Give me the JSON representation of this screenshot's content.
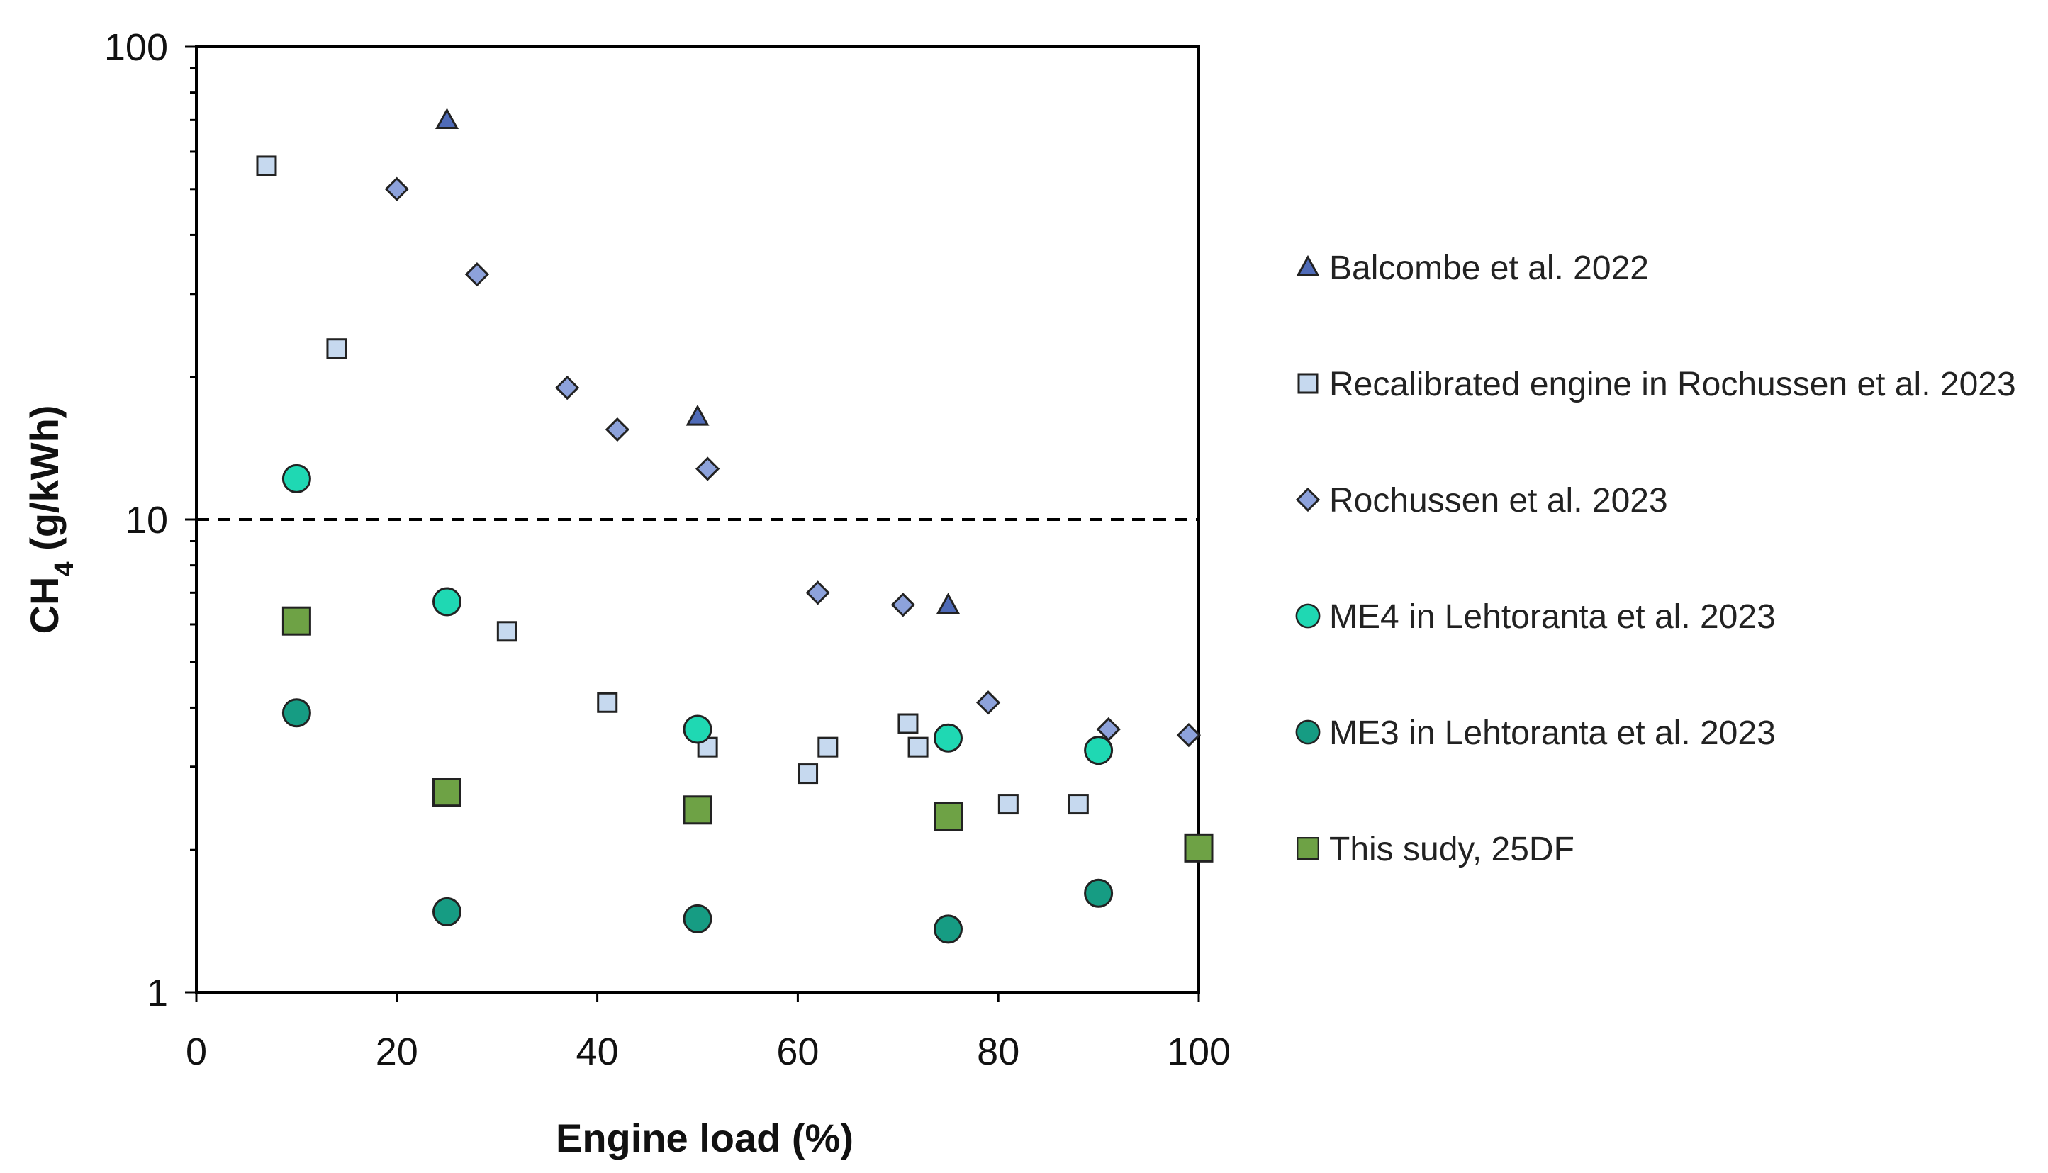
{
  "chart_data": {
    "type": "scatter",
    "xlabel": "Engine load (%)",
    "ylabel_main": "CH",
    "ylabel_sub": "4",
    "ylabel_rest": " (g/kWh)",
    "xlim": [
      0,
      100
    ],
    "ylim": [
      1,
      100
    ],
    "yscale": "log",
    "x_ticks": [
      0,
      20,
      40,
      60,
      80,
      100
    ],
    "x_tick_labels": [
      "0",
      "20",
      "40",
      "60",
      "80",
      "100"
    ],
    "y_ticks": [
      1,
      10,
      100
    ],
    "y_tick_labels": [
      "1",
      "10",
      "100"
    ],
    "reference_line": {
      "y": 10,
      "style": "dashed"
    },
    "grid": false,
    "legend_position": "right",
    "series": [
      {
        "name": "Balcombe et al. 2022",
        "marker": "triangle",
        "color": "#4f6bb8",
        "x": [
          25,
          50,
          75
        ],
        "y": [
          70,
          16.5,
          6.6
        ]
      },
      {
        "name": "Recalibrated engine in Rochussen et al. 2023",
        "marker": "square-small",
        "color": "#c6d9ef",
        "x": [
          7,
          14,
          31,
          41,
          51,
          61,
          63,
          71,
          72,
          81,
          88
        ],
        "y": [
          56,
          23,
          5.8,
          4.1,
          3.3,
          2.9,
          3.3,
          3.7,
          3.3,
          2.5,
          2.5
        ]
      },
      {
        "name": "Rochussen et al. 2023",
        "marker": "diamond",
        "color": "#8da2db",
        "x": [
          20,
          28,
          37,
          42,
          51,
          62,
          70.5,
          79,
          91,
          99
        ],
        "y": [
          50,
          33,
          19,
          15.5,
          12.8,
          7,
          6.6,
          4.1,
          3.6,
          3.5
        ]
      },
      {
        "name": "ME4 in Lehtoranta et al. 2023",
        "marker": "circle",
        "color": "#1fd8b3",
        "x": [
          10,
          25,
          50,
          75,
          90
        ],
        "y": [
          12.2,
          6.7,
          3.6,
          3.45,
          3.25
        ]
      },
      {
        "name": "ME3 in Lehtoranta et al. 2023",
        "marker": "circle",
        "color": "#169c83",
        "x": [
          10,
          25,
          50,
          75,
          90
        ],
        "y": [
          3.9,
          1.48,
          1.43,
          1.36,
          1.62
        ]
      },
      {
        "name": "This sudy, 25DF",
        "marker": "square-large",
        "color": "#6ea245",
        "x": [
          10,
          25,
          50,
          75,
          100
        ],
        "y": [
          6.1,
          2.65,
          2.43,
          2.35,
          2.02
        ]
      }
    ]
  }
}
